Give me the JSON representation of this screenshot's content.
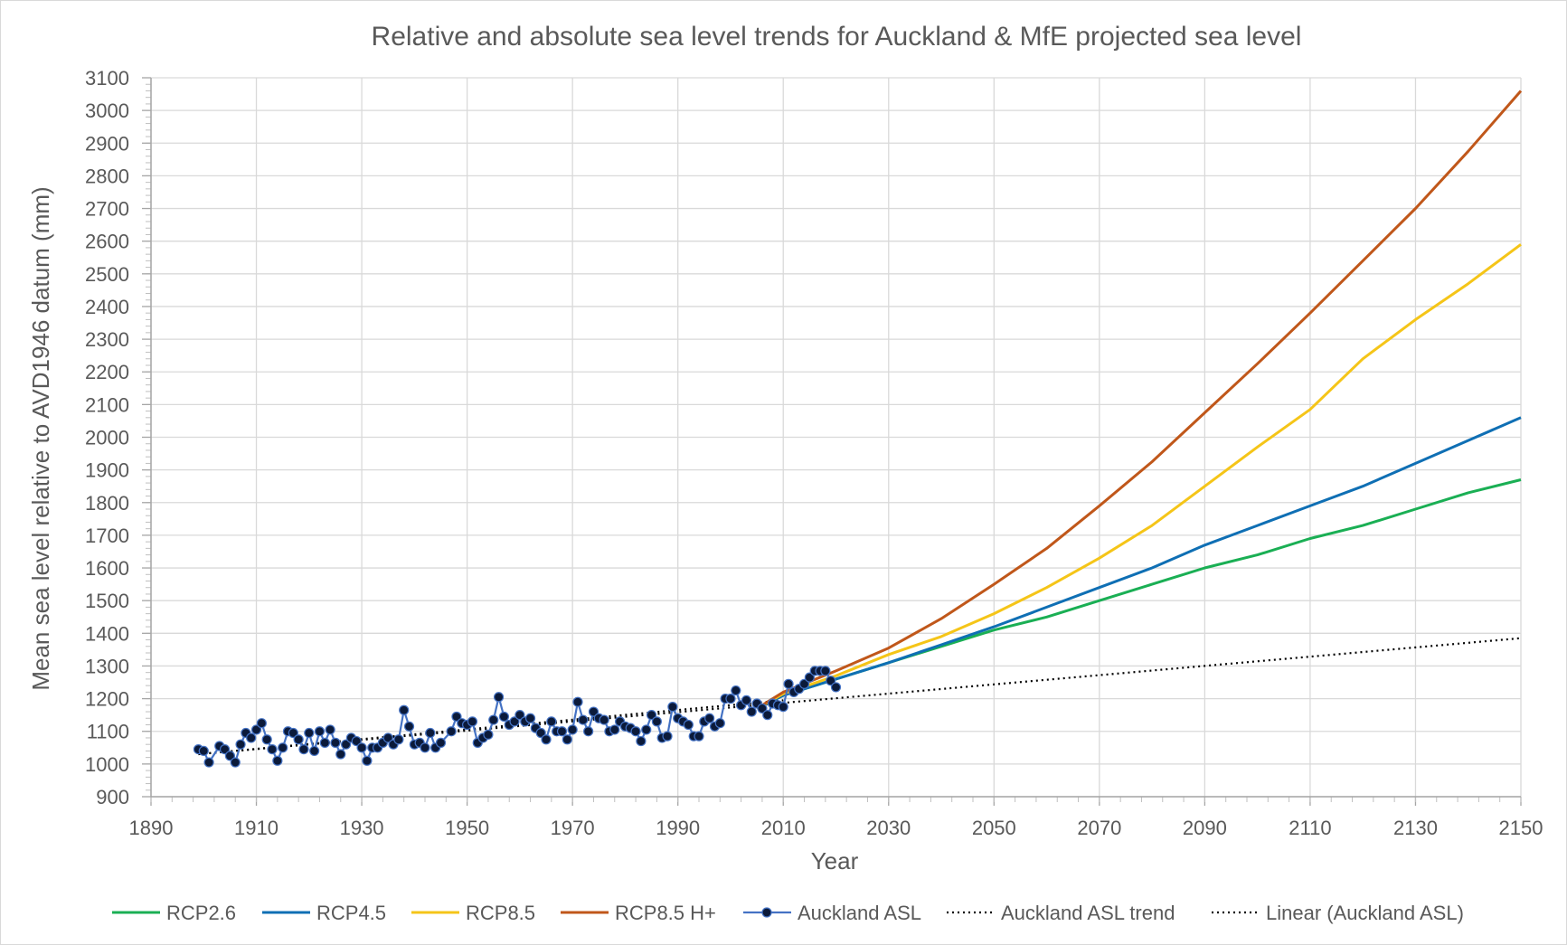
{
  "chart_data": {
    "type": "line",
    "title": "Relative and absolute sea level trends for Auckland & MfE projected sea level",
    "xlabel": "Year",
    "ylabel": "Mean sea level relative to AVD1946 datum (mm)",
    "xlim": [
      1890,
      2150
    ],
    "ylim": [
      900,
      3100
    ],
    "x_ticks": [
      "1890",
      "1910",
      "1930",
      "1950",
      "1970",
      "1990",
      "2010",
      "2030",
      "2050",
      "2070",
      "2090",
      "2110",
      "2130",
      "2150"
    ],
    "y_ticks": [
      "900",
      "1000",
      "1100",
      "1200",
      "1300",
      "1400",
      "1500",
      "1600",
      "1700",
      "1800",
      "1900",
      "2000",
      "2100",
      "2200",
      "2300",
      "2400",
      "2500",
      "2600",
      "2700",
      "2800",
      "2900",
      "3000",
      "3100"
    ],
    "grid": true,
    "legend_position": "bottom",
    "series": [
      {
        "name": "RCP2.6",
        "color": "#1AAF54",
        "style": "solid",
        "x": [
          2005,
          2010,
          2020,
          2030,
          2040,
          2050,
          2060,
          2070,
          2080,
          2090,
          2100,
          2110,
          2120,
          2130,
          2140,
          2150
        ],
        "y": [
          1170,
          1210,
          1260,
          1310,
          1360,
          1410,
          1450,
          1500,
          1550,
          1600,
          1640,
          1690,
          1730,
          1780,
          1830,
          1870
        ]
      },
      {
        "name": "RCP4.5",
        "color": "#0F6FB4",
        "style": "solid",
        "x": [
          2005,
          2010,
          2020,
          2030,
          2040,
          2050,
          2060,
          2070,
          2080,
          2090,
          2100,
          2110,
          2120,
          2130,
          2140,
          2150
        ],
        "y": [
          1170,
          1210,
          1260,
          1310,
          1365,
          1420,
          1480,
          1540,
          1600,
          1670,
          1730,
          1790,
          1850,
          1920,
          1990,
          2060
        ]
      },
      {
        "name": "RCP8.5",
        "color": "#F5C518",
        "style": "solid",
        "x": [
          2005,
          2010,
          2020,
          2030,
          2040,
          2050,
          2060,
          2070,
          2080,
          2090,
          2100,
          2110,
          2120,
          2130,
          2140,
          2150
        ],
        "y": [
          1170,
          1215,
          1270,
          1335,
          1390,
          1460,
          1540,
          1630,
          1730,
          1850,
          1970,
          2085,
          2240,
          2360,
          2470,
          2590
        ]
      },
      {
        "name": "RCP8.5 H+",
        "color": "#C0571A",
        "style": "solid",
        "x": [
          2005,
          2010,
          2020,
          2030,
          2040,
          2050,
          2060,
          2070,
          2080,
          2090,
          2100,
          2110,
          2120,
          2130,
          2140,
          2150
        ],
        "y": [
          1170,
          1220,
          1285,
          1355,
          1445,
          1550,
          1660,
          1790,
          1925,
          2075,
          2225,
          2380,
          2540,
          2700,
          2875,
          3060
        ]
      },
      {
        "name": "Auckland ASL",
        "color": "#4472C4",
        "style": "markers",
        "x": [
          1899,
          1900,
          1901,
          1903,
          1904,
          1905,
          1906,
          1907,
          1908,
          1909,
          1910,
          1911,
          1912,
          1913,
          1914,
          1915,
          1916,
          1917,
          1918,
          1919,
          1920,
          1921,
          1922,
          1923,
          1924,
          1925,
          1926,
          1927,
          1928,
          1929,
          1930,
          1931,
          1932,
          1933,
          1934,
          1935,
          1936,
          1937,
          1938,
          1939,
          1940,
          1941,
          1942,
          1943,
          1944,
          1945,
          1947,
          1948,
          1949,
          1950,
          1951,
          1952,
          1953,
          1954,
          1955,
          1956,
          1957,
          1958,
          1959,
          1960,
          1961,
          1962,
          1963,
          1964,
          1965,
          1966,
          1967,
          1968,
          1969,
          1970,
          1971,
          1972,
          1973,
          1974,
          1975,
          1976,
          1977,
          1978,
          1979,
          1980,
          1981,
          1982,
          1983,
          1984,
          1985,
          1986,
          1987,
          1988,
          1989,
          1990,
          1991,
          1992,
          1993,
          1994,
          1995,
          1996,
          1997,
          1998,
          1999,
          2000,
          2001,
          2002,
          2003,
          2004,
          2005,
          2006,
          2007,
          2008,
          2009,
          2010,
          2011,
          2012,
          2013,
          2014,
          2015,
          2016,
          2017,
          2018,
          2019,
          2020
        ],
        "y": [
          1045,
          1040,
          1005,
          1055,
          1045,
          1025,
          1005,
          1060,
          1095,
          1080,
          1105,
          1125,
          1075,
          1045,
          1010,
          1050,
          1100,
          1095,
          1075,
          1045,
          1095,
          1040,
          1100,
          1065,
          1105,
          1065,
          1030,
          1060,
          1080,
          1070,
          1050,
          1010,
          1050,
          1050,
          1065,
          1080,
          1060,
          1075,
          1165,
          1115,
          1060,
          1065,
          1050,
          1095,
          1050,
          1065,
          1100,
          1145,
          1125,
          1120,
          1130,
          1065,
          1080,
          1090,
          1135,
          1205,
          1145,
          1120,
          1130,
          1150,
          1130,
          1140,
          1110,
          1095,
          1075,
          1130,
          1100,
          1100,
          1075,
          1105,
          1190,
          1135,
          1100,
          1160,
          1140,
          1135,
          1100,
          1105,
          1130,
          1115,
          1110,
          1100,
          1070,
          1105,
          1150,
          1130,
          1080,
          1085,
          1175,
          1140,
          1130,
          1120,
          1085,
          1085,
          1130,
          1140,
          1115,
          1125,
          1200,
          1200,
          1225,
          1180,
          1195,
          1160,
          1185,
          1170,
          1150,
          1185,
          1180,
          1175,
          1245,
          1220,
          1230,
          1245,
          1265,
          1285,
          1285,
          1285,
          1255,
          1235
        ]
      },
      {
        "name": "Auckland ASL trend",
        "color": "#000000",
        "style": "dotted",
        "x": [
          1899,
          2010
        ],
        "y": [
          1030,
          1195
        ]
      },
      {
        "name": "Linear (Auckland ASL)",
        "color": "#000000",
        "style": "dotted",
        "x": [
          1899,
          2150
        ],
        "y": [
          1030,
          1385
        ]
      }
    ]
  }
}
